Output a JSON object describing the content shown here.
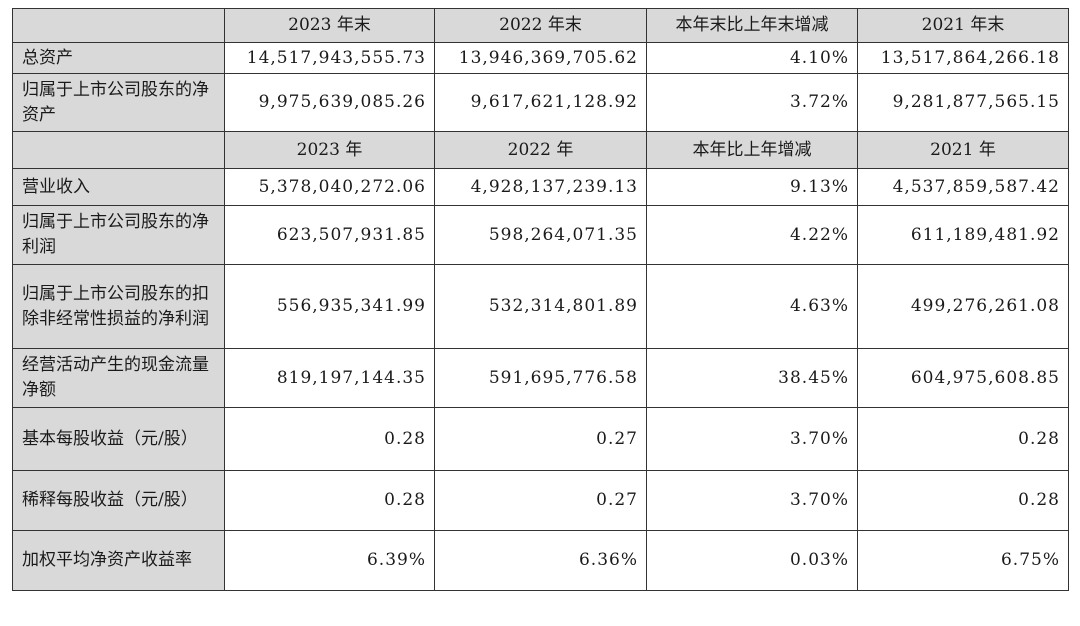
{
  "table": {
    "header1": [
      "",
      "2023 年末",
      "2022 年末",
      "本年末比上年末增减",
      "2021 年末"
    ],
    "section1_rows": [
      {
        "label": "总资产",
        "values": [
          "14,517,943,555.73",
          "13,946,369,705.62",
          "4.10%",
          "13,517,864,266.18"
        ]
      },
      {
        "label": "归属于上市公司股东的净资产",
        "values": [
          "9,975,639,085.26",
          "9,617,621,128.92",
          "3.72%",
          "9,281,877,565.15"
        ]
      }
    ],
    "header2": [
      "",
      "2023 年",
      "2022 年",
      "本年比上年增减",
      "2021 年"
    ],
    "section2_rows": [
      {
        "label": "营业收入",
        "values": [
          "5,378,040,272.06",
          "4,928,137,239.13",
          "9.13%",
          "4,537,859,587.42"
        ]
      },
      {
        "label": "归属于上市公司股东的净利润",
        "values": [
          "623,507,931.85",
          "598,264,071.35",
          "4.22%",
          "611,189,481.92"
        ]
      },
      {
        "label": "归属于上市公司股东的扣除非经常性损益的净利润",
        "values": [
          "556,935,341.99",
          "532,314,801.89",
          "4.63%",
          "499,276,261.08"
        ]
      },
      {
        "label": "经营活动产生的现金流量净额",
        "values": [
          "819,197,144.35",
          "591,695,776.58",
          "38.45%",
          "604,975,608.85"
        ]
      },
      {
        "label": "基本每股收益（元/股）",
        "values": [
          "0.28",
          "0.27",
          "3.70%",
          "0.28"
        ]
      },
      {
        "label": "稀释每股收益（元/股）",
        "values": [
          "0.28",
          "0.27",
          "3.70%",
          "0.28"
        ]
      },
      {
        "label": "加权平均净资产收益率",
        "values": [
          "6.39%",
          "6.36%",
          "0.03%",
          "6.75%"
        ]
      }
    ]
  }
}
